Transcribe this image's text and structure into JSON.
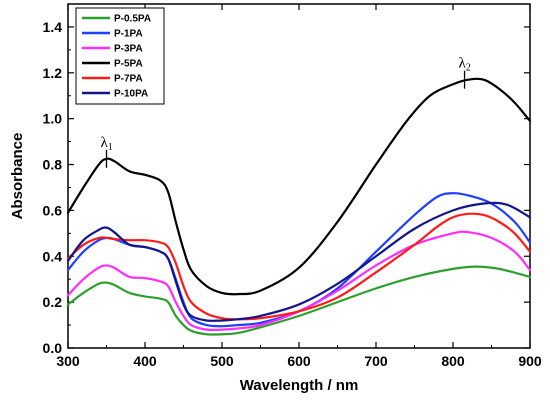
{
  "chart_data": {
    "type": "line",
    "title": "",
    "xlabel": "Wavelength / nm",
    "ylabel": "Absorbance",
    "xlim": [
      300,
      900
    ],
    "ylim": [
      0.0,
      1.5
    ],
    "xticks": [
      300,
      400,
      500,
      600,
      700,
      800,
      900
    ],
    "yticks": [
      0.0,
      0.2,
      0.4,
      0.6,
      0.8,
      1.0,
      1.2,
      1.4
    ],
    "xtick_labels": [
      "300",
      "400",
      "500",
      "600",
      "700",
      "800",
      "900"
    ],
    "ytick_labels": [
      "0.0",
      "0.2",
      "0.4",
      "0.6",
      "0.8",
      "1.0",
      "1.2",
      "1.4"
    ],
    "grid": false,
    "legend_position": "top-left",
    "annotations": [
      {
        "symbol": "λ",
        "sub": "1",
        "x": 350,
        "y": 0.825
      },
      {
        "symbol": "λ",
        "sub": "2",
        "x": 815,
        "y": 1.17
      }
    ],
    "series": [
      {
        "name": "P-0.5PA",
        "color": "#2ca02c",
        "points": [
          [
            300,
            0.19
          ],
          [
            320,
            0.24
          ],
          [
            340,
            0.28
          ],
          [
            350,
            0.285
          ],
          [
            360,
            0.275
          ],
          [
            380,
            0.24
          ],
          [
            400,
            0.225
          ],
          [
            420,
            0.215
          ],
          [
            430,
            0.2
          ],
          [
            440,
            0.14
          ],
          [
            450,
            0.1
          ],
          [
            460,
            0.075
          ],
          [
            480,
            0.06
          ],
          [
            500,
            0.06
          ],
          [
            520,
            0.065
          ],
          [
            550,
            0.09
          ],
          [
            600,
            0.14
          ],
          [
            650,
            0.2
          ],
          [
            700,
            0.26
          ],
          [
            750,
            0.31
          ],
          [
            800,
            0.345
          ],
          [
            830,
            0.355
          ],
          [
            860,
            0.345
          ],
          [
            900,
            0.31
          ]
        ]
      },
      {
        "name": "P-1PA",
        "color": "#1f3fff",
        "points": [
          [
            300,
            0.34
          ],
          [
            320,
            0.42
          ],
          [
            340,
            0.47
          ],
          [
            350,
            0.48
          ],
          [
            360,
            0.475
          ],
          [
            380,
            0.45
          ],
          [
            400,
            0.44
          ],
          [
            420,
            0.42
          ],
          [
            430,
            0.39
          ],
          [
            440,
            0.3
          ],
          [
            450,
            0.2
          ],
          [
            460,
            0.13
          ],
          [
            480,
            0.1
          ],
          [
            500,
            0.095
          ],
          [
            520,
            0.1
          ],
          [
            550,
            0.11
          ],
          [
            600,
            0.16
          ],
          [
            650,
            0.26
          ],
          [
            700,
            0.42
          ],
          [
            750,
            0.58
          ],
          [
            780,
            0.66
          ],
          [
            800,
            0.675
          ],
          [
            820,
            0.665
          ],
          [
            850,
            0.63
          ],
          [
            880,
            0.55
          ],
          [
            900,
            0.46
          ]
        ]
      },
      {
        "name": "P-3PA",
        "color": "#ff2bff",
        "points": [
          [
            300,
            0.23
          ],
          [
            320,
            0.3
          ],
          [
            340,
            0.35
          ],
          [
            350,
            0.36
          ],
          [
            360,
            0.35
          ],
          [
            380,
            0.31
          ],
          [
            400,
            0.305
          ],
          [
            420,
            0.29
          ],
          [
            430,
            0.27
          ],
          [
            440,
            0.2
          ],
          [
            450,
            0.14
          ],
          [
            460,
            0.1
          ],
          [
            480,
            0.08
          ],
          [
            500,
            0.08
          ],
          [
            520,
            0.085
          ],
          [
            550,
            0.1
          ],
          [
            600,
            0.16
          ],
          [
            650,
            0.25
          ],
          [
            700,
            0.36
          ],
          [
            750,
            0.45
          ],
          [
            800,
            0.5
          ],
          [
            820,
            0.505
          ],
          [
            850,
            0.48
          ],
          [
            880,
            0.42
          ],
          [
            900,
            0.34
          ]
        ]
      },
      {
        "name": "P-5PA",
        "color": "#000000",
        "points": [
          [
            300,
            0.59
          ],
          [
            320,
            0.7
          ],
          [
            340,
            0.8
          ],
          [
            350,
            0.825
          ],
          [
            360,
            0.815
          ],
          [
            380,
            0.77
          ],
          [
            400,
            0.755
          ],
          [
            420,
            0.73
          ],
          [
            430,
            0.68
          ],
          [
            440,
            0.55
          ],
          [
            450,
            0.43
          ],
          [
            460,
            0.34
          ],
          [
            480,
            0.27
          ],
          [
            500,
            0.24
          ],
          [
            520,
            0.235
          ],
          [
            550,
            0.25
          ],
          [
            600,
            0.35
          ],
          [
            650,
            0.55
          ],
          [
            700,
            0.8
          ],
          [
            740,
            0.99
          ],
          [
            770,
            1.1
          ],
          [
            800,
            1.15
          ],
          [
            820,
            1.17
          ],
          [
            840,
            1.17
          ],
          [
            860,
            1.13
          ],
          [
            880,
            1.07
          ],
          [
            900,
            0.99
          ]
        ]
      },
      {
        "name": "P-7PA",
        "color": "#ff1a1a",
        "points": [
          [
            300,
            0.39
          ],
          [
            320,
            0.45
          ],
          [
            340,
            0.48
          ],
          [
            350,
            0.48
          ],
          [
            360,
            0.475
          ],
          [
            380,
            0.47
          ],
          [
            400,
            0.47
          ],
          [
            420,
            0.46
          ],
          [
            430,
            0.44
          ],
          [
            440,
            0.37
          ],
          [
            450,
            0.27
          ],
          [
            460,
            0.2
          ],
          [
            480,
            0.15
          ],
          [
            500,
            0.13
          ],
          [
            520,
            0.125
          ],
          [
            550,
            0.13
          ],
          [
            600,
            0.16
          ],
          [
            650,
            0.22
          ],
          [
            700,
            0.33
          ],
          [
            750,
            0.45
          ],
          [
            780,
            0.53
          ],
          [
            800,
            0.57
          ],
          [
            820,
            0.585
          ],
          [
            840,
            0.58
          ],
          [
            860,
            0.55
          ],
          [
            880,
            0.5
          ],
          [
            900,
            0.42
          ]
        ]
      },
      {
        "name": "P-10PA",
        "color": "#14148c",
        "points": [
          [
            300,
            0.38
          ],
          [
            320,
            0.47
          ],
          [
            340,
            0.515
          ],
          [
            350,
            0.525
          ],
          [
            360,
            0.505
          ],
          [
            380,
            0.45
          ],
          [
            400,
            0.44
          ],
          [
            420,
            0.42
          ],
          [
            430,
            0.39
          ],
          [
            440,
            0.29
          ],
          [
            450,
            0.19
          ],
          [
            460,
            0.14
          ],
          [
            480,
            0.12
          ],
          [
            500,
            0.12
          ],
          [
            520,
            0.125
          ],
          [
            550,
            0.14
          ],
          [
            600,
            0.19
          ],
          [
            650,
            0.28
          ],
          [
            700,
            0.4
          ],
          [
            750,
            0.52
          ],
          [
            800,
            0.6
          ],
          [
            840,
            0.63
          ],
          [
            870,
            0.625
          ],
          [
            900,
            0.57
          ]
        ]
      }
    ]
  }
}
